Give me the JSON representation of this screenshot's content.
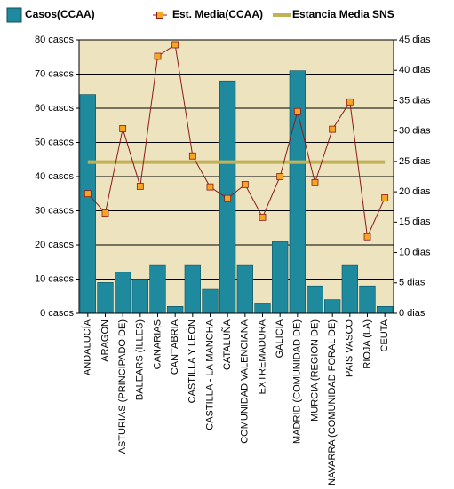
{
  "chart_data": {
    "type": "bar",
    "categories": [
      "ANDALUCÍA",
      "ARAGÓN",
      "ASTURIAS (PRINCIPADO DE)",
      "BALEARS (ILLES)",
      "CANARIAS",
      "CANTABRIA",
      "CASTILLA Y LEÓN",
      "CASTILLA - LA MANCHA",
      "CATALUÑA",
      "COMUNIDAD VALENCIANA",
      "EXTREMADURA",
      "GALICIA",
      "MADRID (COMUNIDAD DE)",
      "MURCIA (REGION DE)",
      "NAVARRA (COMUNIDAD FORAL DE)",
      "PAIS VASCO",
      "RIOJA (LA)",
      "CEUTA"
    ],
    "series": [
      {
        "name": "Casos(CCAA)",
        "type": "bar",
        "color": "#1f8a9e",
        "values": [
          64,
          9,
          12,
          10,
          14,
          2,
          14,
          7,
          68,
          14,
          3,
          21,
          71,
          8,
          4,
          14,
          8,
          2
        ]
      },
      {
        "name": "Est. Media(CCAA)",
        "type": "line",
        "axis": "y2",
        "color": "#8b1a1a",
        "marker_color": "#f5a623",
        "values": [
          19.7,
          16.5,
          30.4,
          20.9,
          42.3,
          44.2,
          25.9,
          20.8,
          18.9,
          21.2,
          15.8,
          22.5,
          33.2,
          21.5,
          30.3,
          34.8,
          12.6,
          19.0
        ]
      },
      {
        "name": "Estancia Media SNS",
        "type": "line",
        "axis": "y2",
        "color": "#c2b257",
        "values": [
          24.9,
          24.9,
          24.9,
          24.9,
          24.9,
          24.9,
          24.9,
          24.9,
          24.9,
          24.9,
          24.9,
          24.9,
          24.9,
          24.9,
          24.9,
          24.9,
          24.9,
          24.9
        ]
      }
    ],
    "ylim": [
      0,
      80
    ],
    "yticks": [
      {
        "value": 0,
        "label": "0 casos"
      },
      {
        "value": 10,
        "label": "10 casos"
      },
      {
        "value": 20,
        "label": "20 casos"
      },
      {
        "value": 30,
        "label": "30 casos"
      },
      {
        "value": 40,
        "label": "40 casos"
      },
      {
        "value": 50,
        "label": "50 casos"
      },
      {
        "value": 60,
        "label": "60 casos"
      },
      {
        "value": 70,
        "label": "70 casos"
      },
      {
        "value": 80,
        "label": "80 casos"
      }
    ],
    "y2lim": [
      0,
      45
    ],
    "y2ticks": [
      {
        "value": 0,
        "label": "0 dias"
      },
      {
        "value": 5,
        "label": "5 dias"
      },
      {
        "value": 10,
        "label": "10 dias"
      },
      {
        "value": 15,
        "label": "15 dias"
      },
      {
        "value": 20,
        "label": "20 dias"
      },
      {
        "value": 25,
        "label": "25 dias"
      },
      {
        "value": 30,
        "label": "30 dias"
      },
      {
        "value": 35,
        "label": "35 dias"
      },
      {
        "value": 40,
        "label": "40 dias"
      },
      {
        "value": 45,
        "label": "45 dias"
      }
    ],
    "grid": true,
    "plot_background": "#ede3bf",
    "legend": "top"
  }
}
